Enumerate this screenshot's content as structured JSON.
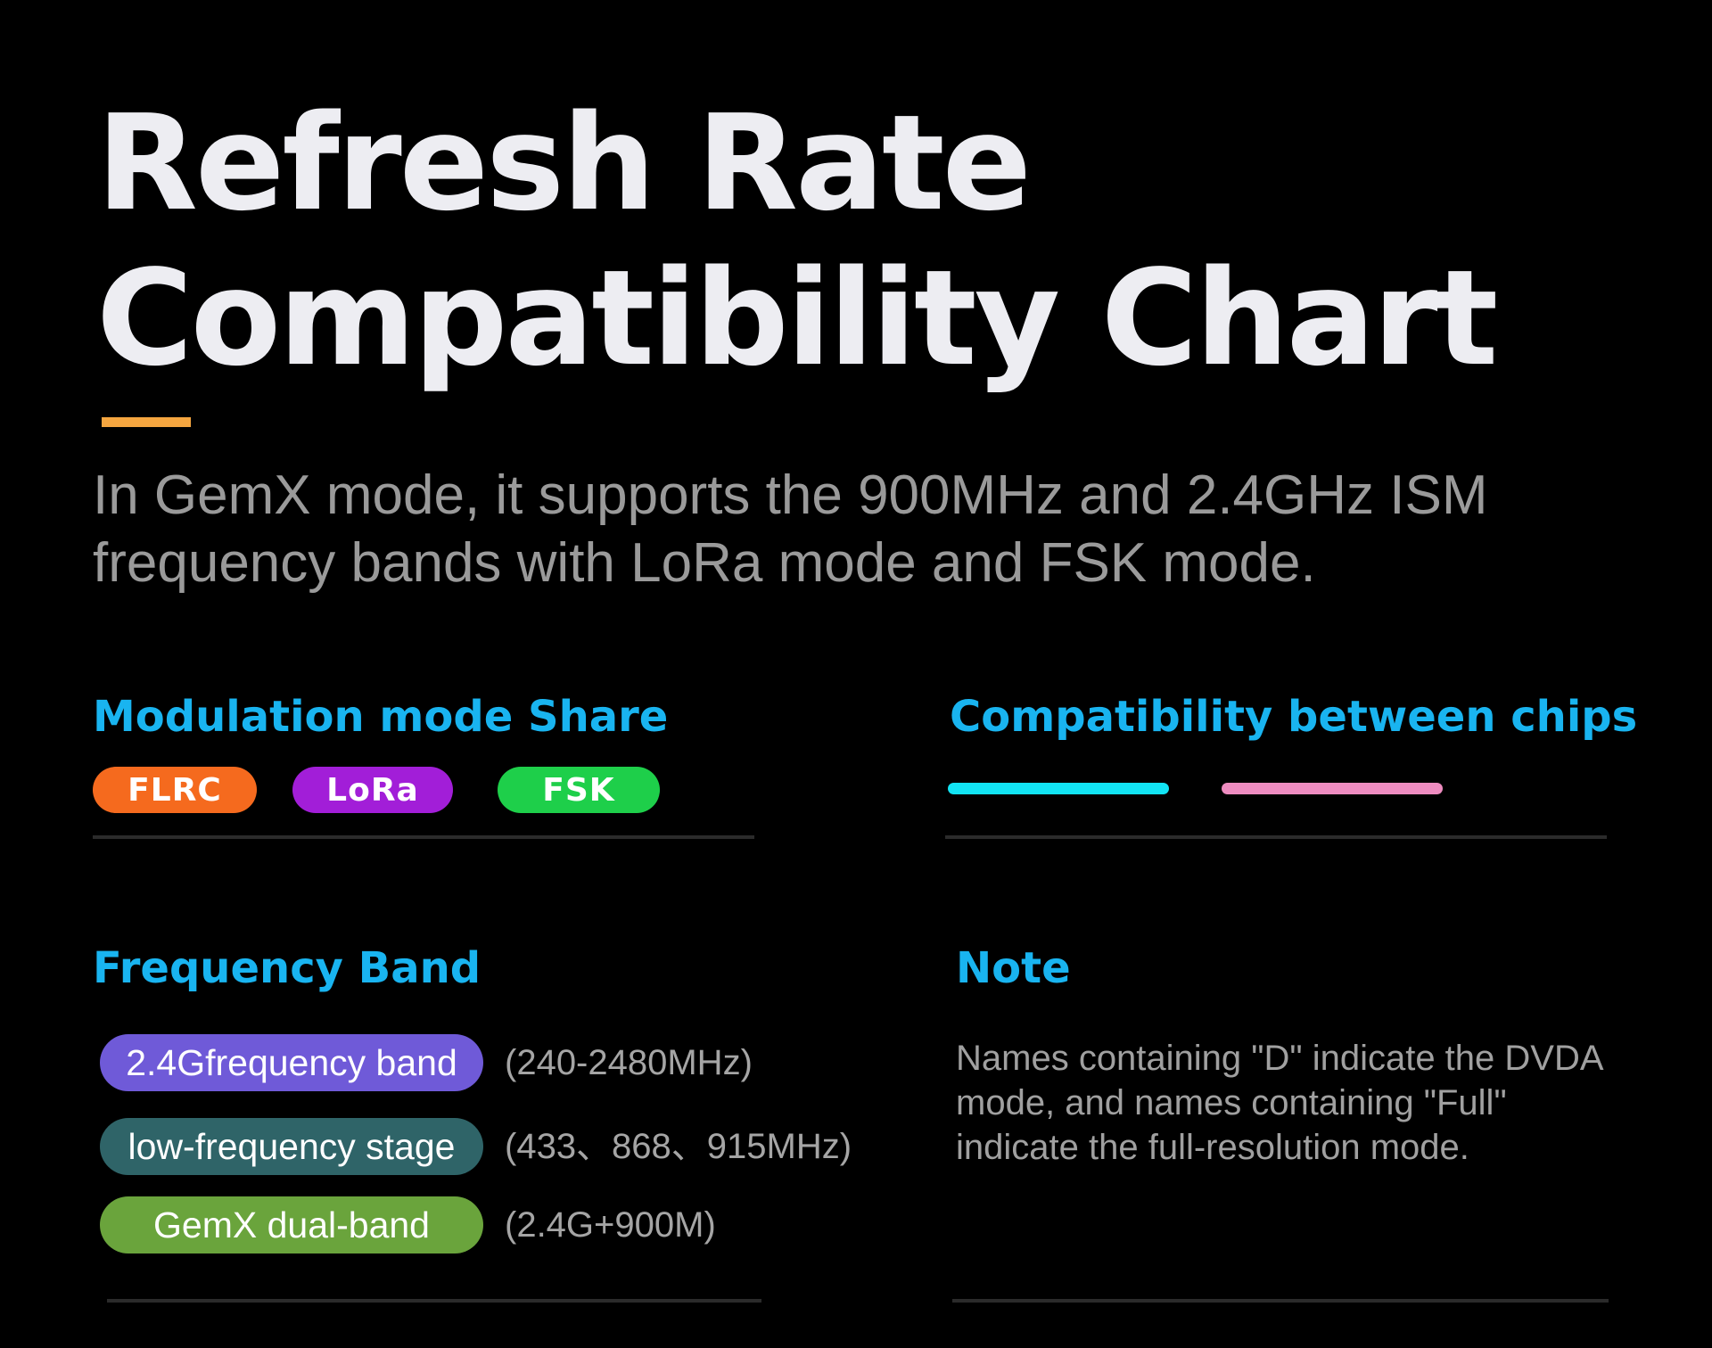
{
  "header": {
    "title_line1": "Refresh Rate",
    "title_line2": "Compatibility Chart",
    "subtitle_line1": "In GemX mode, it supports the 900MHz and 2.4GHz ISM",
    "subtitle_line2": "frequency bands with LoRa mode and FSK mode.",
    "accent_color": "#f5a640"
  },
  "modulation": {
    "heading": "Modulation mode Share",
    "modes": [
      {
        "label": "FLRC",
        "color": "#f56a1e"
      },
      {
        "label": "LoRa",
        "color": "#a21ed8"
      },
      {
        "label": "FSK",
        "color": "#1ecf4a"
      }
    ]
  },
  "compatibility": {
    "heading": "Compatibility between chips",
    "lines": [
      {
        "color": "#12e4f4"
      },
      {
        "color": "#ee8cc0"
      }
    ]
  },
  "frequency": {
    "heading": "Frequency Band",
    "bands": [
      {
        "label": "2.4Gfrequency band",
        "range": "(240-2480MHz)",
        "color": "#6f5ad8"
      },
      {
        "label": "low-frequency stage",
        "range": "(433、868、915MHz)",
        "color": "#2f6468"
      },
      {
        "label": "GemX dual-band",
        "range": "(2.4G+900M)",
        "color": "#6aa43c"
      }
    ]
  },
  "note": {
    "heading": "Note",
    "line1": "Names containing \"D\" indicate the DVDA",
    "line2": "mode, and names containing \"Full\"",
    "line3": "indicate the full-resolution mode."
  }
}
